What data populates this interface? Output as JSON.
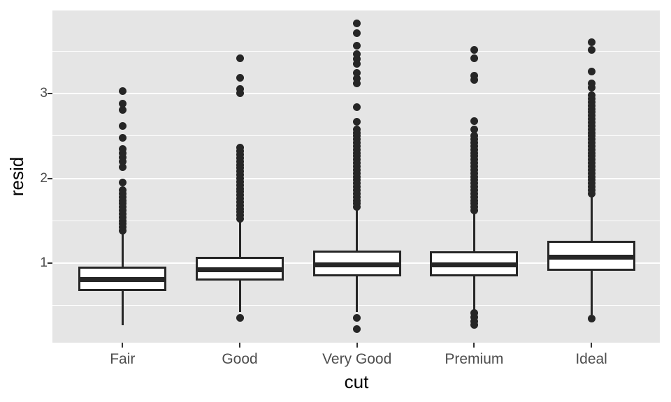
{
  "chart_data": {
    "type": "boxplot",
    "title": "",
    "xlabel": "cut",
    "ylabel": "resid",
    "categories": [
      "Fair",
      "Good",
      "Very Good",
      "Premium",
      "Ideal"
    ],
    "y_axis": {
      "ticks": [
        1,
        2,
        3
      ],
      "tick_labels": [
        "1",
        "2",
        "3"
      ],
      "minor_ticks": [
        0.5,
        1.5,
        2.5,
        3.5
      ],
      "range": [
        0.05,
        3.98
      ]
    },
    "grid": true,
    "legend_position": "none",
    "series": [
      {
        "category": "Fair",
        "whisker_low": 0.26,
        "q1": 0.67,
        "median": 0.8,
        "q3": 0.96,
        "whisker_high": 1.36,
        "outliers_low": [],
        "outliers_high": [
          1.38,
          1.42,
          1.46,
          1.5,
          1.54,
          1.58,
          1.62,
          1.66,
          1.7,
          1.74,
          1.78,
          1.82,
          1.86,
          1.95,
          2.13,
          2.2,
          2.25,
          2.3,
          2.35,
          2.48,
          2.62,
          2.81,
          2.88,
          3.03
        ]
      },
      {
        "category": "Good",
        "whisker_low": 0.42,
        "q1": 0.79,
        "median": 0.92,
        "q3": 1.07,
        "whisker_high": 1.49,
        "outliers_low": [
          0.35
        ],
        "outliers_high": [
          1.52,
          1.56,
          1.6,
          1.64,
          1.68,
          1.72,
          1.76,
          1.8,
          1.84,
          1.88,
          1.92,
          1.96,
          2.0,
          2.04,
          2.08,
          2.12,
          2.16,
          2.2,
          2.24,
          2.28,
          2.32,
          2.36,
          3.01,
          3.06,
          3.19,
          3.42
        ]
      },
      {
        "category": "Very Good",
        "whisker_low": 0.42,
        "q1": 0.84,
        "median": 0.98,
        "q3": 1.15,
        "whisker_high": 1.63,
        "outliers_low": [
          0.22,
          0.35
        ],
        "outliers_high": [
          1.66,
          1.7,
          1.74,
          1.78,
          1.82,
          1.86,
          1.9,
          1.94,
          1.98,
          2.02,
          2.06,
          2.1,
          2.14,
          2.18,
          2.22,
          2.26,
          2.3,
          2.34,
          2.38,
          2.42,
          2.46,
          2.5,
          2.54,
          2.58,
          2.67,
          2.84,
          3.12,
          3.18,
          3.25,
          3.35,
          3.41,
          3.47,
          3.57,
          3.72,
          3.83
        ]
      },
      {
        "category": "Premium",
        "whisker_low": 0.44,
        "q1": 0.84,
        "median": 0.98,
        "q3": 1.14,
        "whisker_high": 1.58,
        "outliers_low": [
          0.27,
          0.31,
          0.36,
          0.41
        ],
        "outliers_high": [
          1.62,
          1.66,
          1.7,
          1.74,
          1.78,
          1.82,
          1.86,
          1.9,
          1.94,
          1.98,
          2.02,
          2.06,
          2.1,
          2.14,
          2.18,
          2.22,
          2.26,
          2.3,
          2.34,
          2.38,
          2.42,
          2.46,
          2.5,
          2.58,
          2.68,
          3.16,
          3.21,
          3.42,
          3.52
        ]
      },
      {
        "category": "Ideal",
        "whisker_low": 0.39,
        "q1": 0.91,
        "median": 1.07,
        "q3": 1.26,
        "whisker_high": 1.78,
        "outliers_low": [
          0.34
        ],
        "outliers_high": [
          1.82,
          1.86,
          1.9,
          1.94,
          1.98,
          2.02,
          2.06,
          2.1,
          2.14,
          2.18,
          2.22,
          2.26,
          2.3,
          2.34,
          2.38,
          2.42,
          2.46,
          2.5,
          2.54,
          2.58,
          2.62,
          2.66,
          2.7,
          2.74,
          2.78,
          2.82,
          2.86,
          2.9,
          2.94,
          2.98,
          3.07,
          3.12,
          3.26,
          3.52,
          3.61
        ]
      }
    ],
    "colors": {
      "panel_bg": "#E5E5E5",
      "grid": "#FFFFFF",
      "box_fill": "#FFFFFF",
      "line": "#262626",
      "tick_text": "#4D4D4D",
      "axis_title": "#000000",
      "tick_mark": "#333333"
    }
  }
}
